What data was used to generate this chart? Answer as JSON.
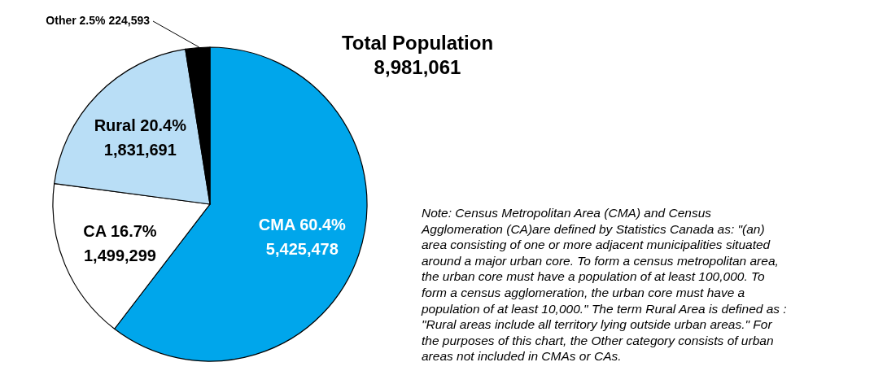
{
  "chart_data": {
    "type": "pie",
    "title": "Total Population",
    "subtitle": "8,981,061",
    "categories": [
      "CMA",
      "CA",
      "Rural",
      "Other"
    ],
    "values": [
      60.4,
      16.7,
      20.4,
      2.5
    ],
    "colors": [
      "#00a6eb",
      "#ffffff",
      "#b9def6",
      "#000000"
    ],
    "value_labels": [
      "60.4%\n5,425,478",
      "16.7%\n1,499,299",
      "20.4%\n1,831,691",
      "2.5% 224,593"
    ],
    "legend": false,
    "annotations": [
      "Note: Census Metropolitan Area (CMA) and Census Agglomeration (CA)are defined by Statistics Canada as: \"(an) area consisting of one or more adjacent municipalities situated around a major urban core. To form a census metropolitan area, the urban core must have a population of at least 100,000. To form a census agglomeration, the urban core must have a population of at least 10,000.\" The term Rural Area is defined as : \"Rural areas include all territory lying outside urban areas.\" For the purposes of this chart, the Other category consists of urban areas not included in CMAs or CAs."
    ]
  }
}
